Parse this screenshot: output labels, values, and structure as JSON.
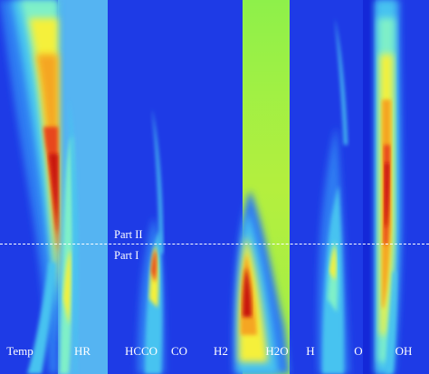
{
  "figure": {
    "colors": {
      "background": "#1e3be6",
      "colormap": [
        "#1e3be6",
        "#2f7cf2",
        "#46c3f0",
        "#7ff0c8",
        "#c8f25a",
        "#f5f03a",
        "#f5a623",
        "#e8461e",
        "#c8180a"
      ],
      "divider": "#ffffff",
      "label": "#ffffff"
    },
    "part_labels": {
      "upper": "Part II",
      "lower": "Part I"
    },
    "species": [
      {
        "label": "Temp"
      },
      {
        "label": "HR"
      },
      {
        "label": "HCCO"
      },
      {
        "label": "CO"
      },
      {
        "label": "H2"
      },
      {
        "label": "H2O"
      },
      {
        "label": "H"
      },
      {
        "label": "O"
      },
      {
        "label": "OH"
      }
    ]
  }
}
